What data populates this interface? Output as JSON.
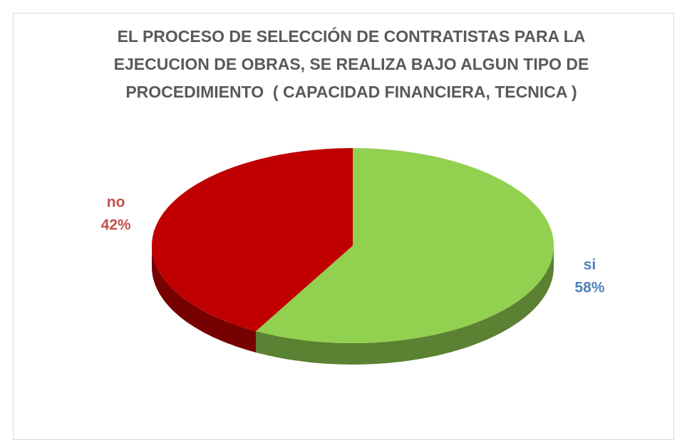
{
  "chart_data": {
    "type": "pie",
    "title": "EL PROCESO DE SELECCIÓN DE CONTRATISTAS PARA LA EJECUCION DE OBRAS, SE REALIZA BAJO ALGUN TIPO DE PROCEDIMIENTO  ( CAPACIDAD FINANCIERA, TECNICA )",
    "categories": [
      "si",
      "no"
    ],
    "values": [
      58,
      42
    ],
    "value_labels": [
      "58%",
      "42%"
    ],
    "colors": [
      "#92d050",
      "#c00000"
    ],
    "label_colors": [
      "#4f81bd",
      "#c0504d"
    ]
  }
}
